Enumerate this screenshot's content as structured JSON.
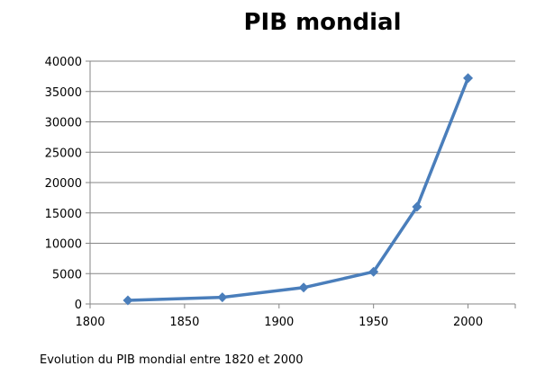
{
  "chart_data": {
    "type": "line",
    "title": "PIB mondial",
    "caption": "Evolution du PIB mondial entre 1820 et 2000",
    "xlim": [
      1800,
      2025
    ],
    "ylim": [
      0,
      40000
    ],
    "x_ticks": [
      "1800",
      "1850",
      "1900",
      "1950",
      "2000"
    ],
    "y_ticks": [
      "0",
      "5000",
      "10000",
      "15000",
      "20000",
      "25000",
      "30000",
      "35000",
      "40000"
    ],
    "series": [
      {
        "x": [
          1820,
          1870,
          1913,
          1950,
          1973,
          2000
        ],
        "y": [
          600,
          1100,
          2700,
          5300,
          16000,
          37200
        ]
      }
    ],
    "grid": "horizontal",
    "line_color": "#4a7ebb",
    "grid_color": "#868686"
  }
}
